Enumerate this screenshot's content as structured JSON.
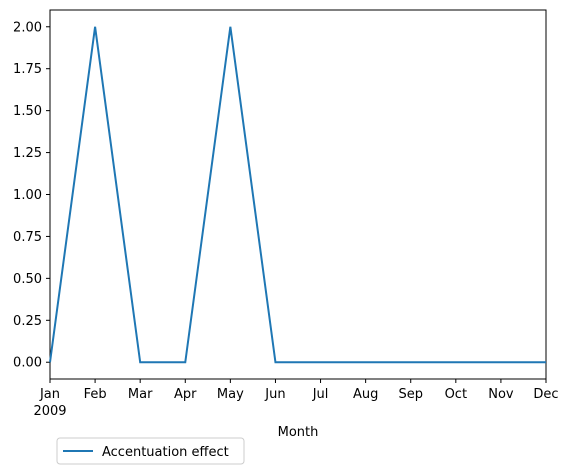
{
  "chart_data": {
    "type": "line",
    "title": "",
    "xlabel": "Month",
    "ylabel": "",
    "x_tick_labels": [
      "Jan",
      "Feb",
      "Mar",
      "Apr",
      "May",
      "Jun",
      "Jul",
      "Aug",
      "Sep",
      "Oct",
      "Nov",
      "Dec"
    ],
    "x_year_label": "2009",
    "categories": [
      "2009-01",
      "2009-02",
      "2009-03",
      "2009-04",
      "2009-05",
      "2009-06",
      "2009-07",
      "2009-08",
      "2009-09",
      "2009-10",
      "2009-11",
      "2009-12"
    ],
    "y_ticks": [
      "0.00",
      "0.25",
      "0.50",
      "0.75",
      "1.00",
      "1.25",
      "1.50",
      "1.75",
      "2.00"
    ],
    "ylim": [
      -0.1,
      2.1
    ],
    "series": [
      {
        "name": "Accentuation effect",
        "color": "#1f77b4",
        "values": [
          0,
          2,
          0,
          0,
          2,
          0,
          0,
          0,
          0,
          0,
          0,
          0
        ]
      }
    ],
    "legend_position": "below-left",
    "grid": false
  }
}
